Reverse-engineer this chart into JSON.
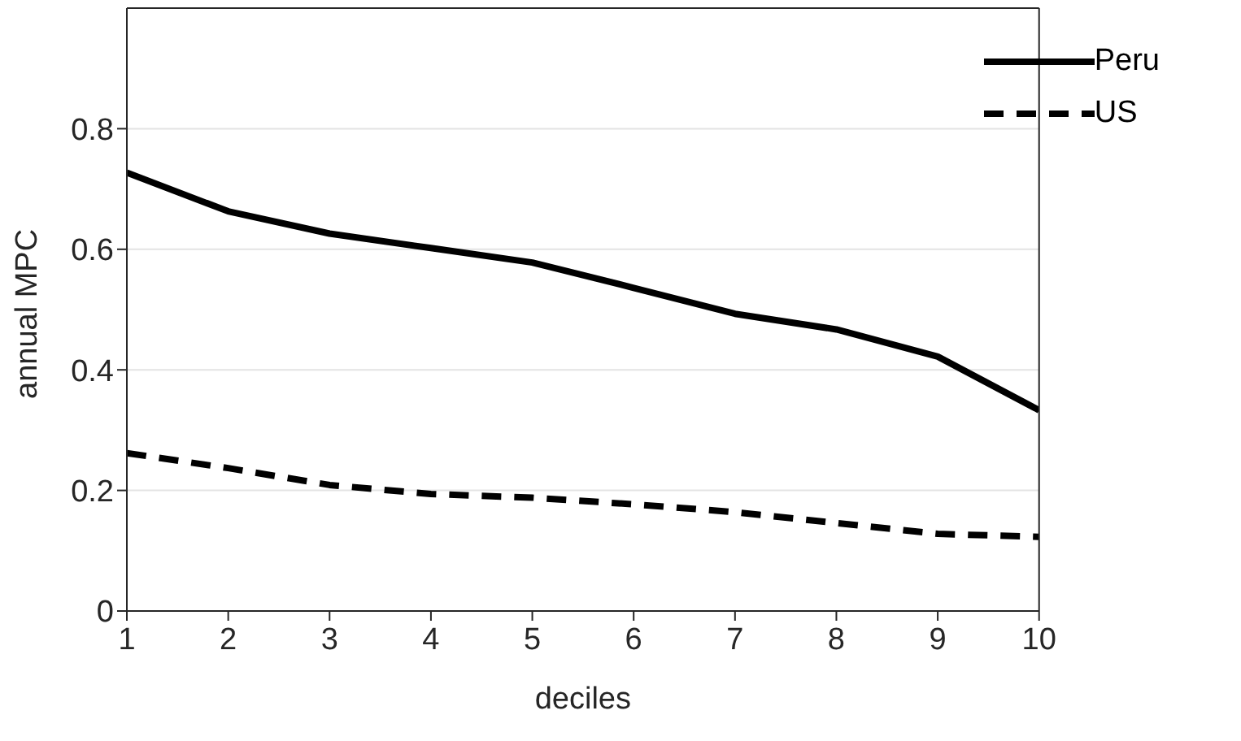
{
  "chart_data": {
    "type": "line",
    "xlabel": "deciles",
    "ylabel": "annual MPC",
    "x": [
      1,
      2,
      3,
      4,
      5,
      6,
      7,
      8,
      9,
      10
    ],
    "series": [
      {
        "name": "Peru",
        "color": "#000000",
        "line_style": "solid",
        "values": [
          0.727,
          0.663,
          0.626,
          0.602,
          0.578,
          0.536,
          0.493,
          0.467,
          0.422,
          0.333
        ]
      },
      {
        "name": "US",
        "color": "#000000",
        "line_style": "dashed",
        "values": [
          0.262,
          0.237,
          0.209,
          0.194,
          0.188,
          0.177,
          0.164,
          0.146,
          0.128,
          0.123
        ]
      }
    ],
    "xlim": [
      1,
      10
    ],
    "xticks": [
      1,
      2,
      3,
      4,
      5,
      6,
      7,
      8,
      9,
      10
    ],
    "ylim": [
      0,
      1
    ],
    "yticks": [
      0,
      0.2,
      0.4,
      0.6,
      0.8
    ],
    "grid": "y",
    "legend": "top right",
    "marker": "none"
  }
}
